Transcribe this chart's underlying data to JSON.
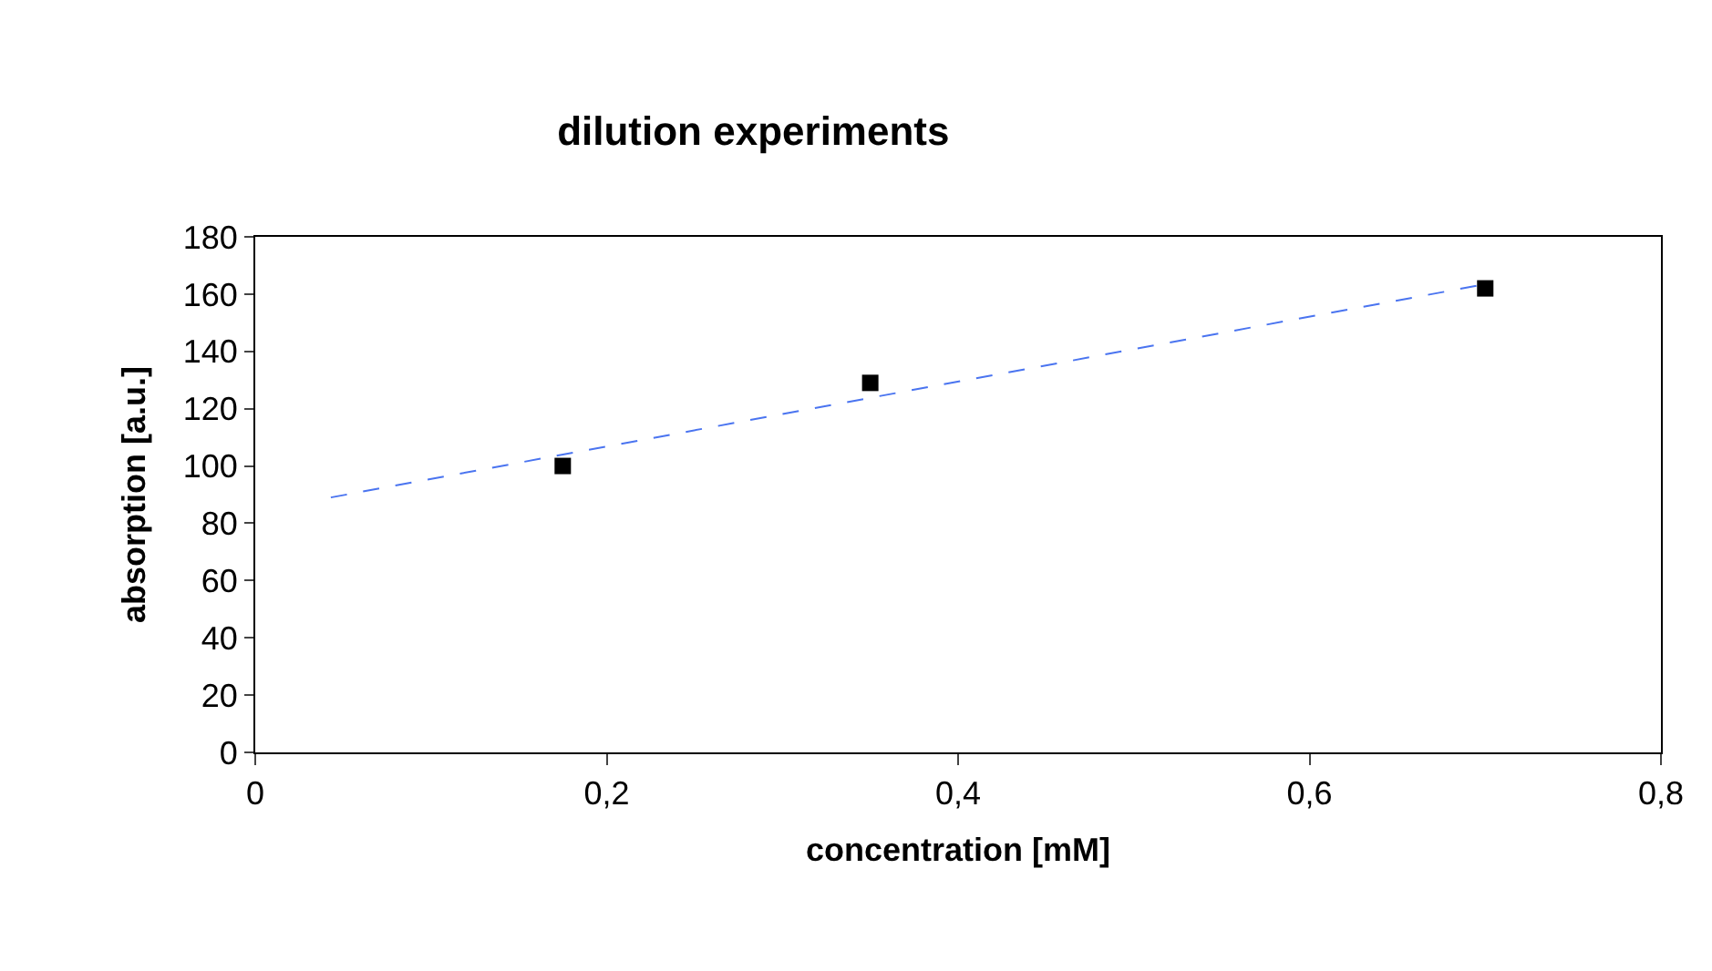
{
  "chart_data": {
    "type": "scatter",
    "title": "dilution experiments",
    "xlabel": "concentration [mM]",
    "ylabel": "absorption [a.u.]",
    "series": [
      {
        "color": "#000000",
        "marker": "square",
        "x": [
          0.175,
          0.35,
          0.7
        ],
        "values": [
          100,
          129,
          162
        ]
      },
      {
        "type": "line",
        "color": "#4a74f0",
        "line_style": "dashed",
        "marker": "none",
        "x": [
          0.043,
          0.696
        ],
        "values": [
          89,
          163
        ]
      }
    ],
    "xlim": [
      0,
      0.8
    ],
    "xticks": [
      0,
      {
        "value": 0.2,
        "label": "0,2"
      },
      {
        "value": 0.4,
        "label": "0,4"
      },
      {
        "value": 0.6,
        "label": "0,6"
      },
      {
        "value": 0.8,
        "label": "0,8"
      }
    ],
    "ylim": [
      0,
      180
    ],
    "yticks": [
      0,
      20,
      40,
      60,
      80,
      100,
      120,
      140,
      160,
      180
    ]
  }
}
